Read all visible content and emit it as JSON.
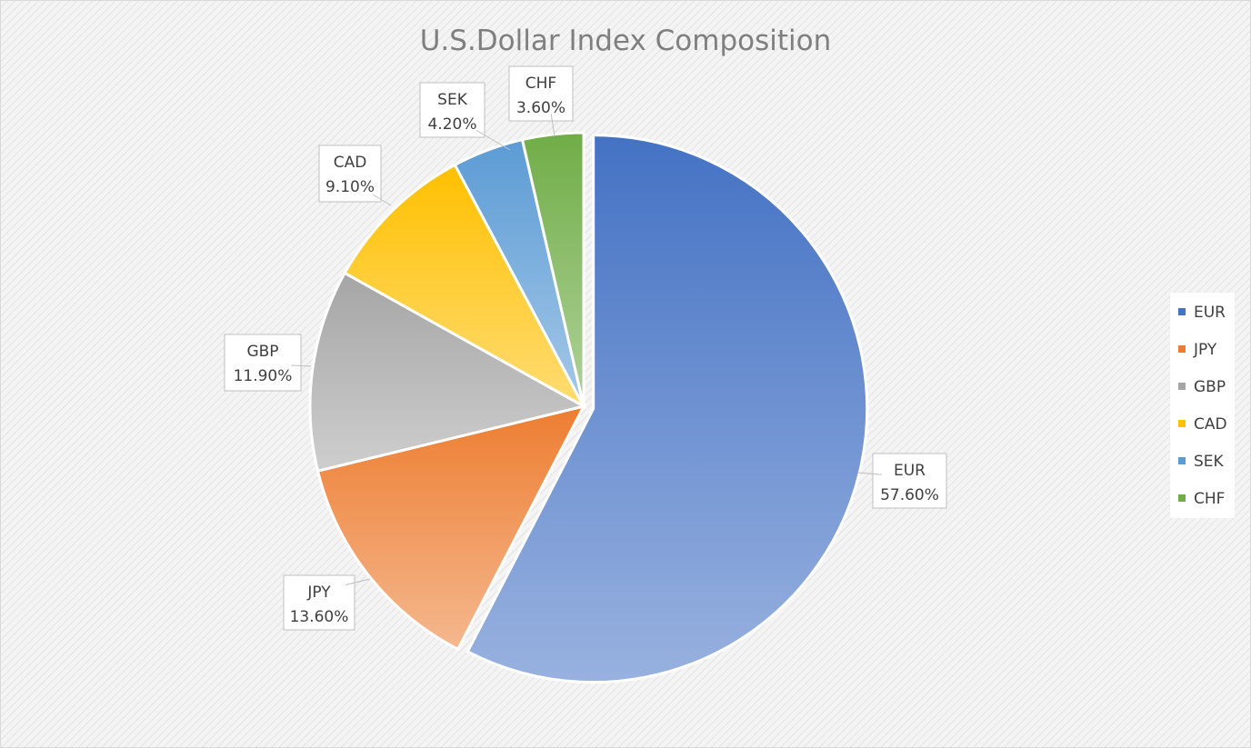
{
  "chart_data": {
    "type": "pie",
    "title": "U.S.Dollar Index Composition",
    "categories": [
      "EUR",
      "JPY",
      "GBP",
      "CAD",
      "SEK",
      "CHF"
    ],
    "values": [
      57.6,
      13.6,
      11.9,
      9.1,
      4.2,
      3.6
    ],
    "data_labels": [
      "57.60%",
      "13.60%",
      "11.90%",
      "9.10%",
      "4.20%",
      "3.60%"
    ],
    "colors": [
      "#4472c4",
      "#ed7d31",
      "#a5a5a5",
      "#ffc000",
      "#5b9bd5",
      "#70ad47"
    ],
    "legend_position": "right",
    "start_angle_deg": 0,
    "direction": "clockwise",
    "exploded_slice": "EUR"
  }
}
